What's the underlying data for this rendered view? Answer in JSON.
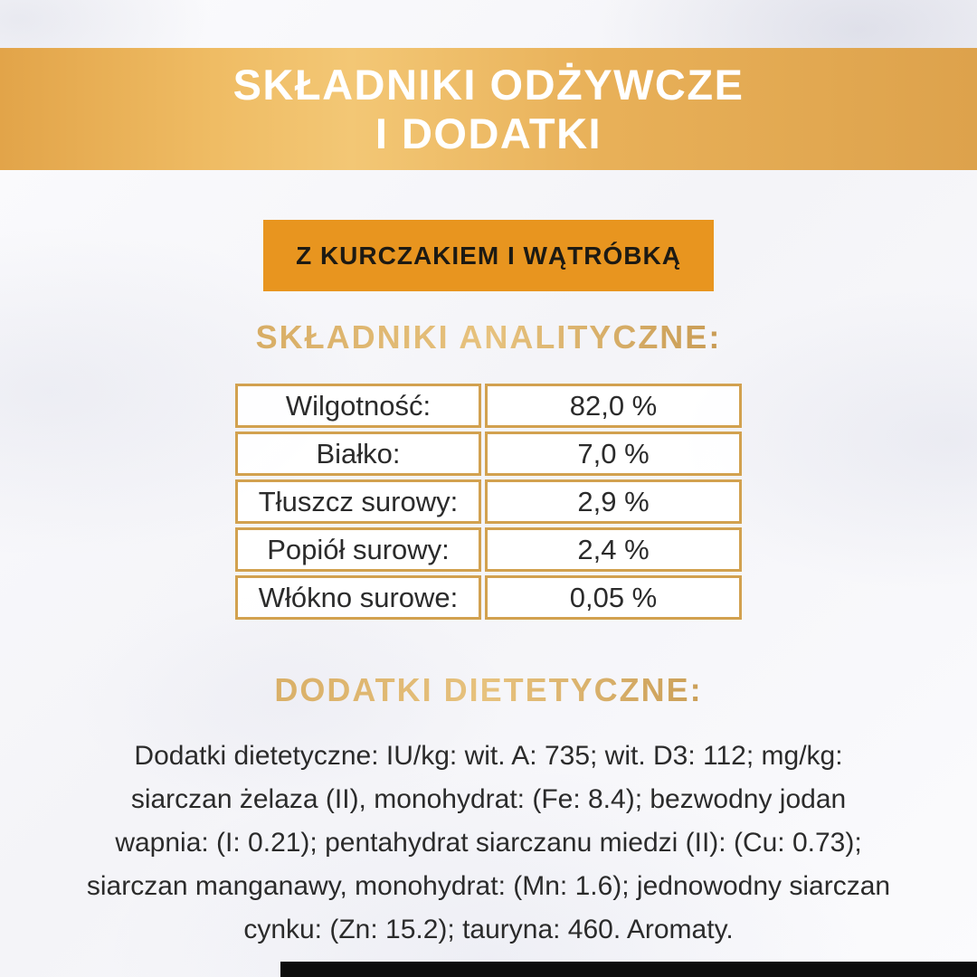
{
  "banner": {
    "title_line1": "SKŁADNIKI ODŻYWCZE",
    "title_line2": "I DODATKI"
  },
  "variant_chip": {
    "label": "Z KURCZAKIEM I WĄTRÓBKĄ"
  },
  "analytical": {
    "heading": "SKŁADNIKI ANALITYCZNE:",
    "rows": [
      {
        "label": "Wilgotność:",
        "value": "82,0 %"
      },
      {
        "label": "Białko:",
        "value": "7,0 %"
      },
      {
        "label": "Tłuszcz surowy:",
        "value": "2,9 %"
      },
      {
        "label": "Popiół surowy:",
        "value": "2,4 %"
      },
      {
        "label": "Włókno surowe:",
        "value": "0,05 %"
      }
    ]
  },
  "additives": {
    "heading": "DODATKI DIETETYCZNE:",
    "text": "Dodatki dietetyczne: IU/kg: wit. A: 735; wit. D3: 112; mg/kg: siarczan żelaza (II), monohydrat: (Fe: 8.4); bezwodny jodan wapnia: (I: 0.21); pentahydrat siarczanu miedzi (II): (Cu: 0.73); siarczan manganawy, monohydrat: (Mn: 1.6); jednowodny siarczan cynku: (Zn: 15.2); tauryna: 460. Aromaty."
  },
  "colors": {
    "accent_orange": "#e8951f",
    "chip_text": "#1d1a13",
    "gold_border": "#d2a14f",
    "heading_gold": "#c79b51",
    "banner_gold_light": "#f3c775",
    "banner_gold_dark": "#dda24c",
    "text_dark": "#2b2b2b",
    "bar_black": "#0c0c0c"
  }
}
